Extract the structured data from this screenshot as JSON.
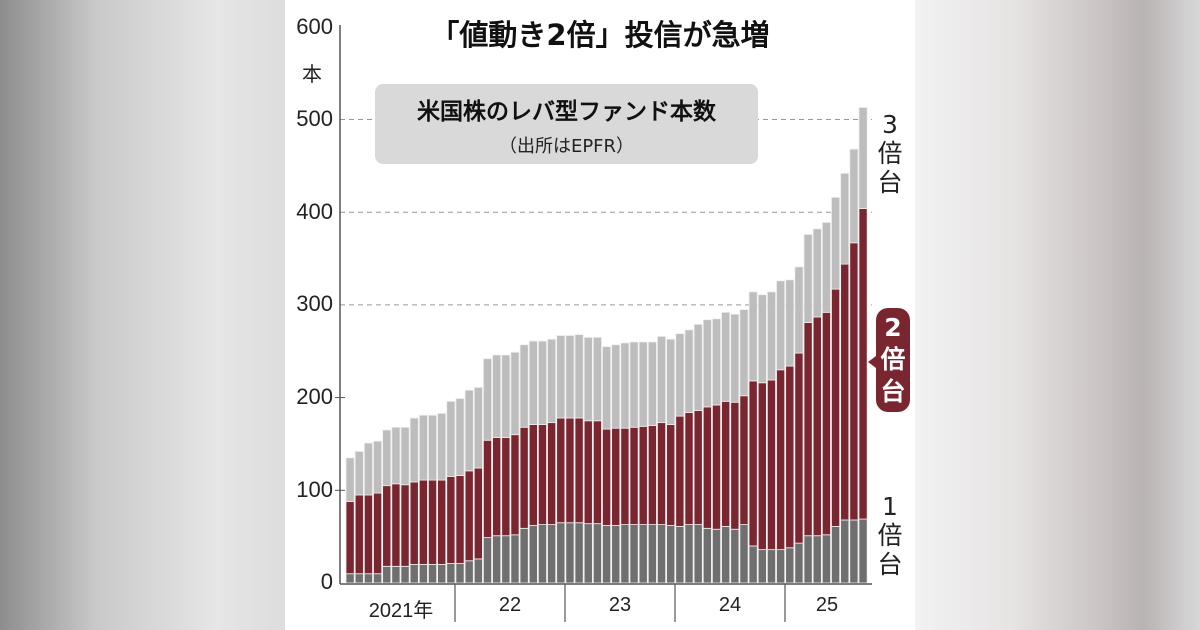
{
  "chart_data": {
    "type": "bar",
    "stacked": true,
    "title": "「値動き2倍」投信が急増",
    "legend_title": "米国株のレバ型ファンド本数",
    "source": "（出所はEPFR）",
    "ylabel": "本",
    "ylim": [
      0,
      600
    ],
    "yticks": [
      "0",
      "100",
      "200",
      "300",
      "400",
      "500",
      "600"
    ],
    "xticks": [
      "2021年",
      "22",
      "23",
      "24",
      "25"
    ],
    "grid": "dashed at 300, 400, 500",
    "colors": {
      "one_x": "#6f6f6f",
      "two_x": "#7a2630",
      "three_x": "#bdbdbd"
    },
    "series": [
      {
        "name": "1倍台",
        "key": "one_x",
        "values": [
          10,
          10,
          10,
          10,
          18,
          18,
          18,
          20,
          20,
          20,
          20,
          21,
          21,
          24,
          26,
          49,
          51,
          51,
          52,
          59,
          62,
          63,
          63,
          65,
          65,
          65,
          64,
          64,
          62,
          62,
          63,
          63,
          63,
          63,
          63,
          62,
          61,
          63,
          63,
          59,
          58,
          61,
          58,
          63,
          40,
          36,
          36,
          36,
          38,
          43,
          51,
          51,
          52,
          61,
          68,
          68,
          69
        ]
      },
      {
        "name": "2倍台",
        "key": "two_x",
        "values": [
          78,
          85,
          85,
          87,
          87,
          89,
          88,
          89,
          91,
          91,
          91,
          94,
          95,
          97,
          98,
          105,
          106,
          106,
          108,
          109,
          109,
          108,
          110,
          113,
          113,
          113,
          111,
          111,
          104,
          105,
          104,
          105,
          106,
          107,
          110,
          109,
          119,
          121,
          123,
          131,
          134,
          135,
          137,
          139,
          178,
          180,
          183,
          194,
          196,
          205,
          230,
          236,
          240,
          256,
          276,
          299,
          335
        ]
      },
      {
        "name": "3倍台",
        "key": "three_x",
        "values": [
          47,
          47,
          56,
          56,
          60,
          61,
          62,
          69,
          70,
          70,
          72,
          81,
          83,
          87,
          87,
          88,
          89,
          89,
          89,
          89,
          90,
          90,
          90,
          89,
          89,
          90,
          90,
          90,
          89,
          90,
          92,
          92,
          91,
          90,
          93,
          92,
          89,
          89,
          93,
          94,
          93,
          96,
          95,
          93,
          96,
          95,
          95,
          96,
          93,
          93,
          95,
          95,
          97,
          99,
          98,
          101,
          109
        ]
      }
    ],
    "labels": {
      "three_x": [
        "3",
        "倍",
        "台"
      ],
      "two_x": [
        "2",
        "倍",
        "台"
      ],
      "one_x": [
        "1",
        "倍",
        "台"
      ]
    }
  }
}
